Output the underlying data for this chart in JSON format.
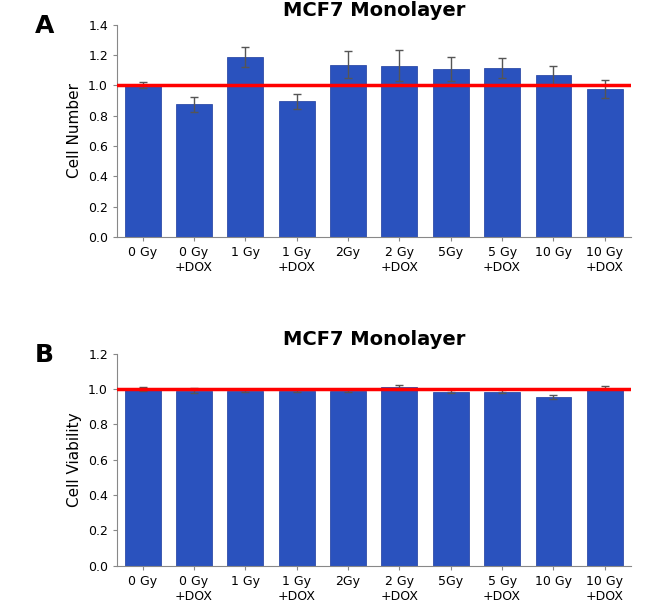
{
  "title": "MCF7 Monolayer",
  "bar_color": "#2A52BE",
  "bar_edge_color": "#1A3A9E",
  "ref_line_color": "red",
  "ref_line_value": 1.0,
  "categories": [
    "0 Gy",
    "0 Gy\n+DOX",
    "1 Gy",
    "1 Gy\n+DOX",
    "2Gy",
    "2 Gy\n+DOX",
    "5Gy",
    "5 Gy\n+DOX",
    "10 Gy",
    "10 Gy\n+DOX"
  ],
  "plot_A": {
    "ylabel": "Cell Number",
    "ylim": [
      0,
      1.4
    ],
    "yticks": [
      0,
      0.2,
      0.4,
      0.6,
      0.8,
      1.0,
      1.2,
      1.4
    ],
    "values": [
      1.0,
      0.875,
      1.185,
      0.895,
      1.135,
      1.13,
      1.105,
      1.115,
      1.065,
      0.975
    ],
    "errors": [
      0.02,
      0.05,
      0.065,
      0.05,
      0.09,
      0.1,
      0.08,
      0.065,
      0.065,
      0.06
    ]
  },
  "plot_B": {
    "ylabel": "Cell Viability",
    "ylim": [
      0,
      1.2
    ],
    "yticks": [
      0,
      0.2,
      0.4,
      0.6,
      0.8,
      1.0,
      1.2
    ],
    "values": [
      1.0,
      0.99,
      0.99,
      0.99,
      0.99,
      1.01,
      0.985,
      0.985,
      0.955,
      1.005
    ],
    "errors": [
      0.01,
      0.015,
      0.008,
      0.008,
      0.008,
      0.015,
      0.01,
      0.01,
      0.01,
      0.01
    ]
  },
  "panel_label_fontsize": 18,
  "title_fontsize": 14,
  "axis_label_fontsize": 11,
  "tick_fontsize": 9,
  "background_color": "#ffffff"
}
